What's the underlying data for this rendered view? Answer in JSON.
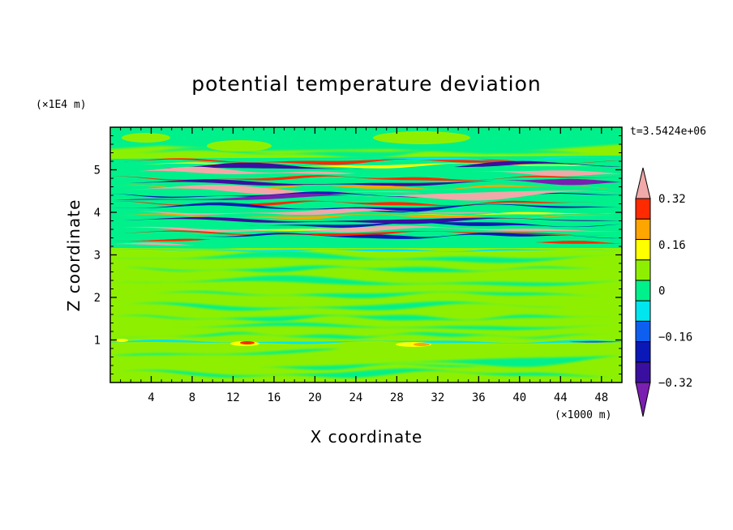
{
  "chart_data": {
    "type": "heatmap",
    "title": "potential temperature deviation",
    "xlabel": "X coordinate",
    "ylabel": "Z coordinate",
    "x_unit": "(×1000 m)",
    "y_unit": "(×1E4 m)",
    "time_label": "t=3.5424e+06",
    "xlim": [
      0,
      50
    ],
    "ylim": [
      0,
      6
    ],
    "x_ticks": [
      "4",
      "8",
      "12",
      "16",
      "20",
      "24",
      "28",
      "32",
      "36",
      "40",
      "44",
      "48"
    ],
    "y_ticks": [
      "1",
      "2",
      "3",
      "4",
      "5"
    ],
    "colorbar": {
      "ticks": [
        "0.32",
        "0.16",
        "0",
        "−0.16",
        "−0.32"
      ],
      "tick_values": [
        0.32,
        0.16,
        0,
        -0.16,
        -0.32
      ],
      "levels": [
        -0.4,
        -0.32,
        -0.24,
        -0.16,
        -0.08,
        0,
        0.08,
        0.16,
        0.24,
        0.32,
        0.4
      ],
      "colors": [
        "#7a1fb0",
        "#3a0fa0",
        "#0a18b8",
        "#0e5ff0",
        "#00e5ee",
        "#00f08c",
        "#8ef000",
        "#ffff00",
        "#ffa500",
        "#ff2a00",
        "#f0a8a8"
      ],
      "extend": "both"
    },
    "bands": [
      {
        "z": [
          0.0,
          0.9
        ],
        "value": 0.05,
        "pattern": "green and light-green patches"
      },
      {
        "z": [
          0.95,
          1.05
        ],
        "value": 0.12,
        "pattern": "thin layer with yellow/red spots near x 14 and x 28-31"
      },
      {
        "z": [
          1.05,
          3.1
        ],
        "value": 0.03,
        "pattern": "alternating green and light-green streaks"
      },
      {
        "z": [
          3.1,
          3.5
        ],
        "value": 0.3,
        "pattern": "red/pink layer at left edge"
      },
      {
        "z": [
          3.5,
          5.2
        ],
        "value": -0.05,
        "pattern": "interleaved pink (above 0.32) and dark blue/purple (below -0.32) layers"
      },
      {
        "z": [
          5.2,
          6.0
        ],
        "value": 0.04,
        "pattern": "green and light-green"
      }
    ]
  }
}
